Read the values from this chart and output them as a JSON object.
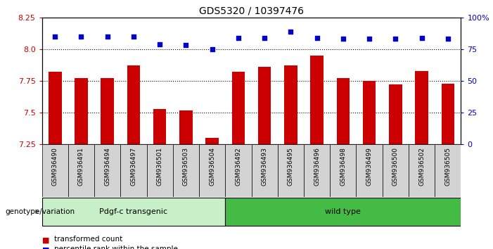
{
  "title": "GDS5320 / 10397476",
  "samples": [
    "GSM936490",
    "GSM936491",
    "GSM936494",
    "GSM936497",
    "GSM936501",
    "GSM936503",
    "GSM936504",
    "GSM936492",
    "GSM936493",
    "GSM936495",
    "GSM936496",
    "GSM936498",
    "GSM936499",
    "GSM936500",
    "GSM936502",
    "GSM936505"
  ],
  "transformed_count": [
    7.82,
    7.77,
    7.77,
    7.87,
    7.53,
    7.52,
    7.3,
    7.82,
    7.86,
    7.87,
    7.95,
    7.77,
    7.75,
    7.72,
    7.83,
    7.73
  ],
  "percentile_rank": [
    85,
    85,
    85,
    85,
    79,
    78,
    75,
    84,
    84,
    89,
    84,
    83,
    83,
    83,
    84,
    83
  ],
  "groups": [
    {
      "label": "Pdgf-c transgenic",
      "start": 0,
      "end": 7,
      "color": "#c8f0c8"
    },
    {
      "label": "wild type",
      "start": 7,
      "end": 16,
      "color": "#44bb44"
    }
  ],
  "ylim_left": [
    7.25,
    8.25
  ],
  "ylim_right": [
    0,
    100
  ],
  "yticks_left": [
    7.25,
    7.5,
    7.75,
    8.0,
    8.25
  ],
  "yticks_right": [
    0,
    25,
    50,
    75,
    100
  ],
  "ytick_labels_right": [
    "0",
    "25",
    "50",
    "75",
    "100%"
  ],
  "bar_color": "#cc0000",
  "dot_color": "#0000cc",
  "background_color": "#ffffff",
  "plot_bg_color": "#ffffff",
  "dotted_line_color": "#000000",
  "x_tick_bg": "#d3d3d3"
}
